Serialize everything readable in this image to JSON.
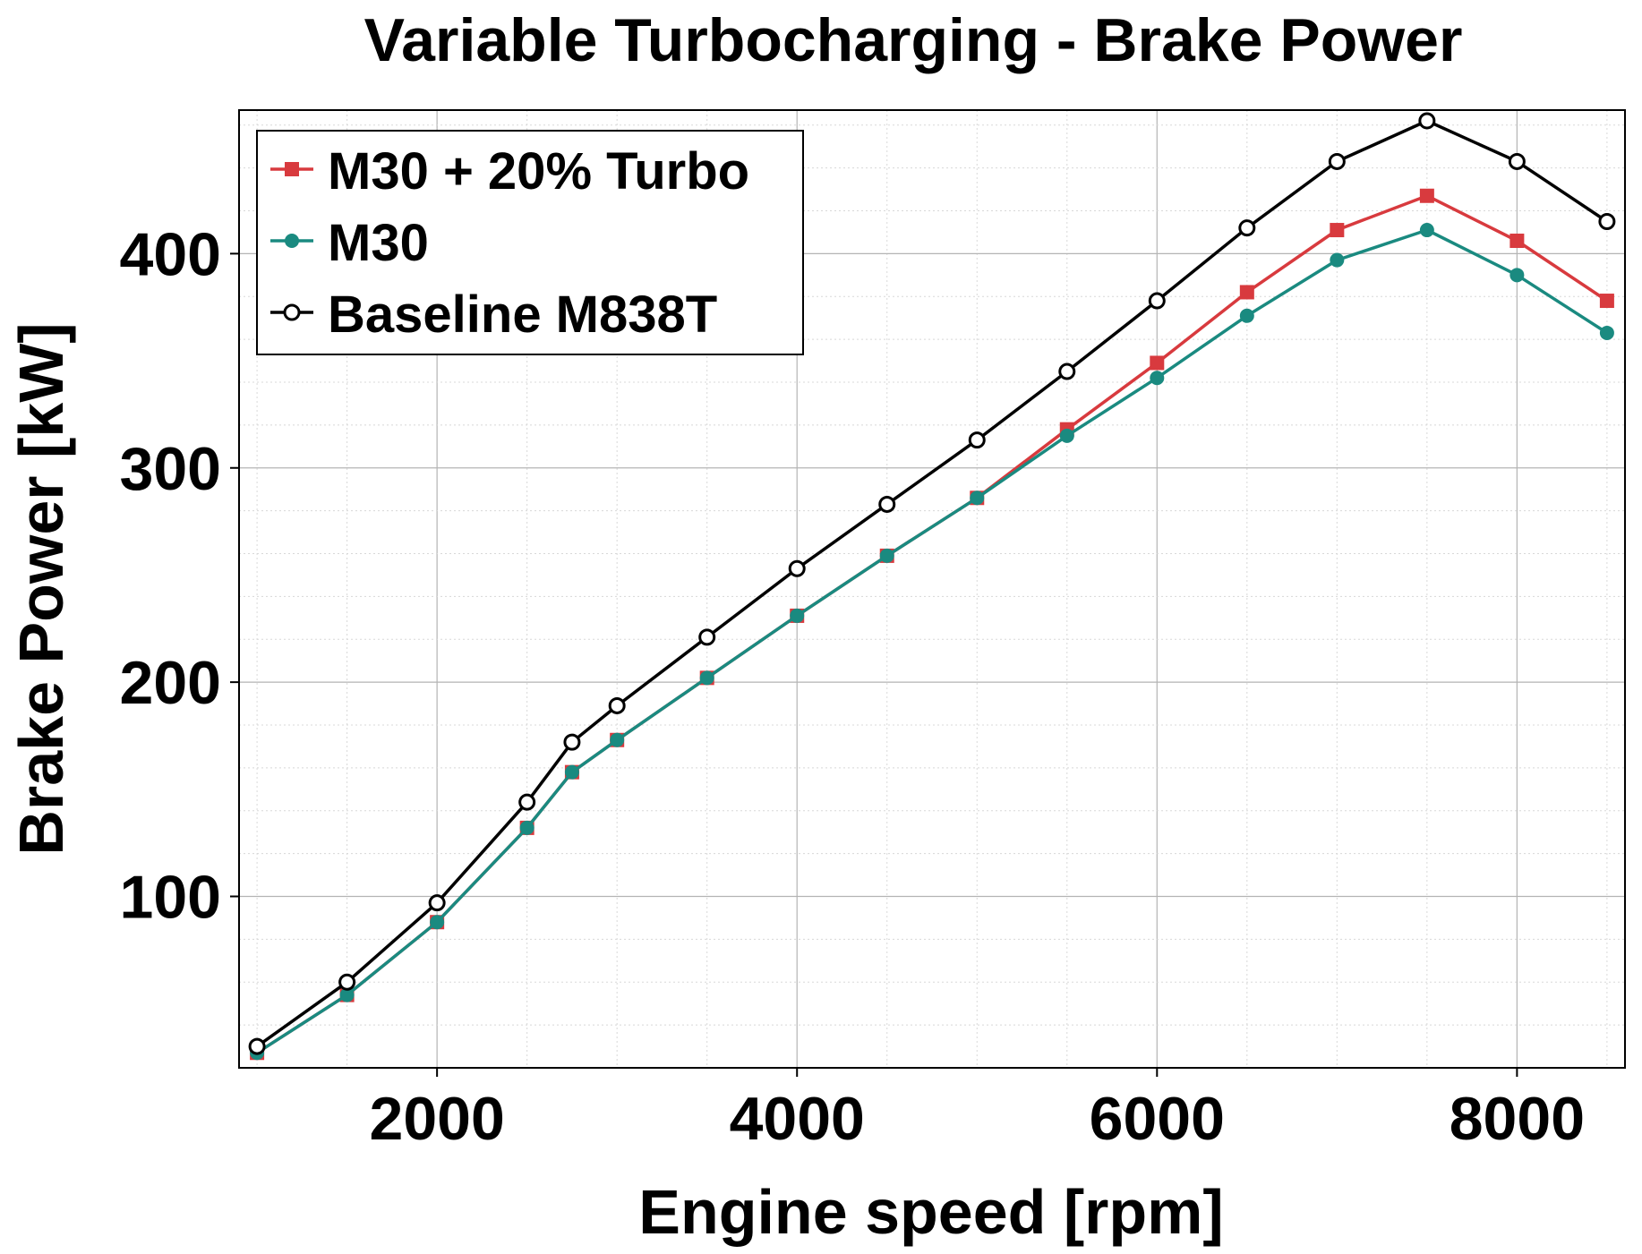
{
  "chart_data": {
    "type": "line",
    "title": "Variable Turbocharging - Brake Power",
    "xlabel": "Engine speed [rpm]",
    "ylabel": "Brake Power [kW]",
    "xlim": [
      900,
      8600
    ],
    "ylim": [
      20,
      467
    ],
    "x_ticks": [
      2000,
      4000,
      6000,
      8000
    ],
    "y_ticks": [
      100,
      200,
      300,
      400
    ],
    "x_minor_step": 500,
    "y_minor_step": 20,
    "grid": true,
    "legend_position": "top-left",
    "x": [
      1000,
      1500,
      2000,
      2500,
      2750,
      3000,
      3500,
      4000,
      4500,
      5000,
      5500,
      6000,
      6500,
      7000,
      7500,
      8000,
      8500
    ],
    "series": [
      {
        "name": "M30 + 20% Turbo",
        "color": "#d83a3e",
        "marker": "square",
        "values": [
          27,
          54,
          88,
          132,
          158,
          173,
          202,
          231,
          259,
          286,
          318,
          349,
          382,
          411,
          427,
          406,
          378
        ]
      },
      {
        "name": "M30",
        "color": "#1a8a80",
        "marker": "circle-filled",
        "values": [
          27,
          54,
          88,
          132,
          158,
          173,
          202,
          231,
          259,
          286,
          315,
          342,
          371,
          397,
          411,
          390,
          363
        ]
      },
      {
        "name": "Baseline M838T",
        "color": "#000000",
        "marker": "circle-open",
        "values": [
          30,
          60,
          97,
          144,
          172,
          189,
          221,
          253,
          283,
          313,
          345,
          378,
          412,
          443,
          462,
          443,
          415
        ]
      }
    ]
  }
}
